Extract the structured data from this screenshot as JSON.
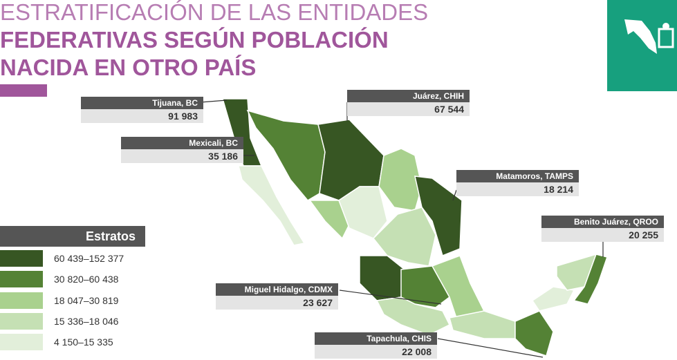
{
  "title": {
    "line1": "ESTRATIFICACIÓN DE LAS ENTIDADES",
    "line2": "FEDERATIVAS SEGÚN POBLACIÓN",
    "line3": "NACIDA EN OTRO PAÍS"
  },
  "legend": {
    "title": "Estratos",
    "items": [
      {
        "label": "60 439–152 377",
        "color": "#375623"
      },
      {
        "label": "30 820–60 438",
        "color": "#548235"
      },
      {
        "label": "18 047–30 819",
        "color": "#a9d18e"
      },
      {
        "label": "15 336–18 046",
        "color": "#c5e0b4"
      },
      {
        "label": "4 150–15 335",
        "color": "#e2efda"
      }
    ]
  },
  "callouts": [
    {
      "place": "Tijuana, BC",
      "value": "91 983"
    },
    {
      "place": "Mexicali, BC",
      "value": "35 186"
    },
    {
      "place": "Juárez, CHIH",
      "value": "67 544"
    },
    {
      "place": "Matamoros, TAMPS",
      "value": "18 214"
    },
    {
      "place": "Benito Juárez, QROO",
      "value": "20 255"
    },
    {
      "place": "Miguel Hidalgo, CDMX",
      "value": "23 627"
    },
    {
      "place": "Tapachula, CHIS",
      "value": "22 008"
    }
  ]
}
